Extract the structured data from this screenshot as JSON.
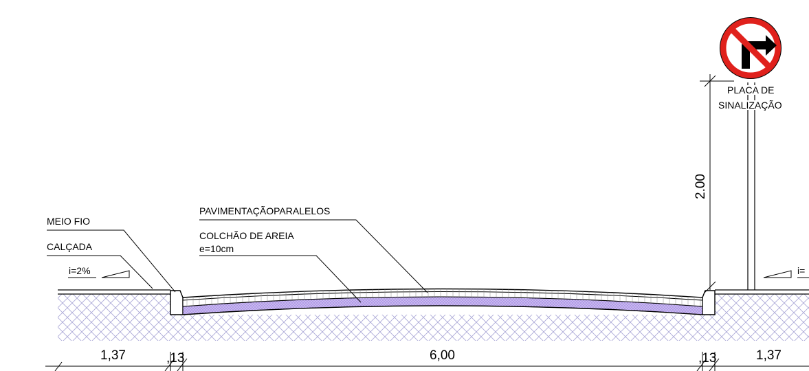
{
  "labels": {
    "meio_fio": "MEIO FIO",
    "calcada": "CALÇADA",
    "slope_left": "i=2%",
    "slope_right": "i=",
    "pavimentacao": "PAVIMENTAÇÃOPARALELOS",
    "colchao": "COLCHÃO DE AREIA",
    "colchao_thickness": "e=10cm",
    "placa_line1": "PLACA DE",
    "placa_line2": "SINALIZAÇÃO"
  },
  "dimensions": {
    "left_sidewalk": "1,37",
    "left_curb": ",13",
    "road": "6,00",
    "right_curb": ",13",
    "right_sidewalk": "1,37",
    "sign_height": "2.00"
  },
  "sign": {
    "type": "no-right-turn-icon",
    "ring_color": "#e0211c",
    "arrow_color": "#000000"
  },
  "colors": {
    "soil_hatch": "#a9a6d6",
    "sand_fill": "#b7a4e8",
    "line": "#000000"
  }
}
